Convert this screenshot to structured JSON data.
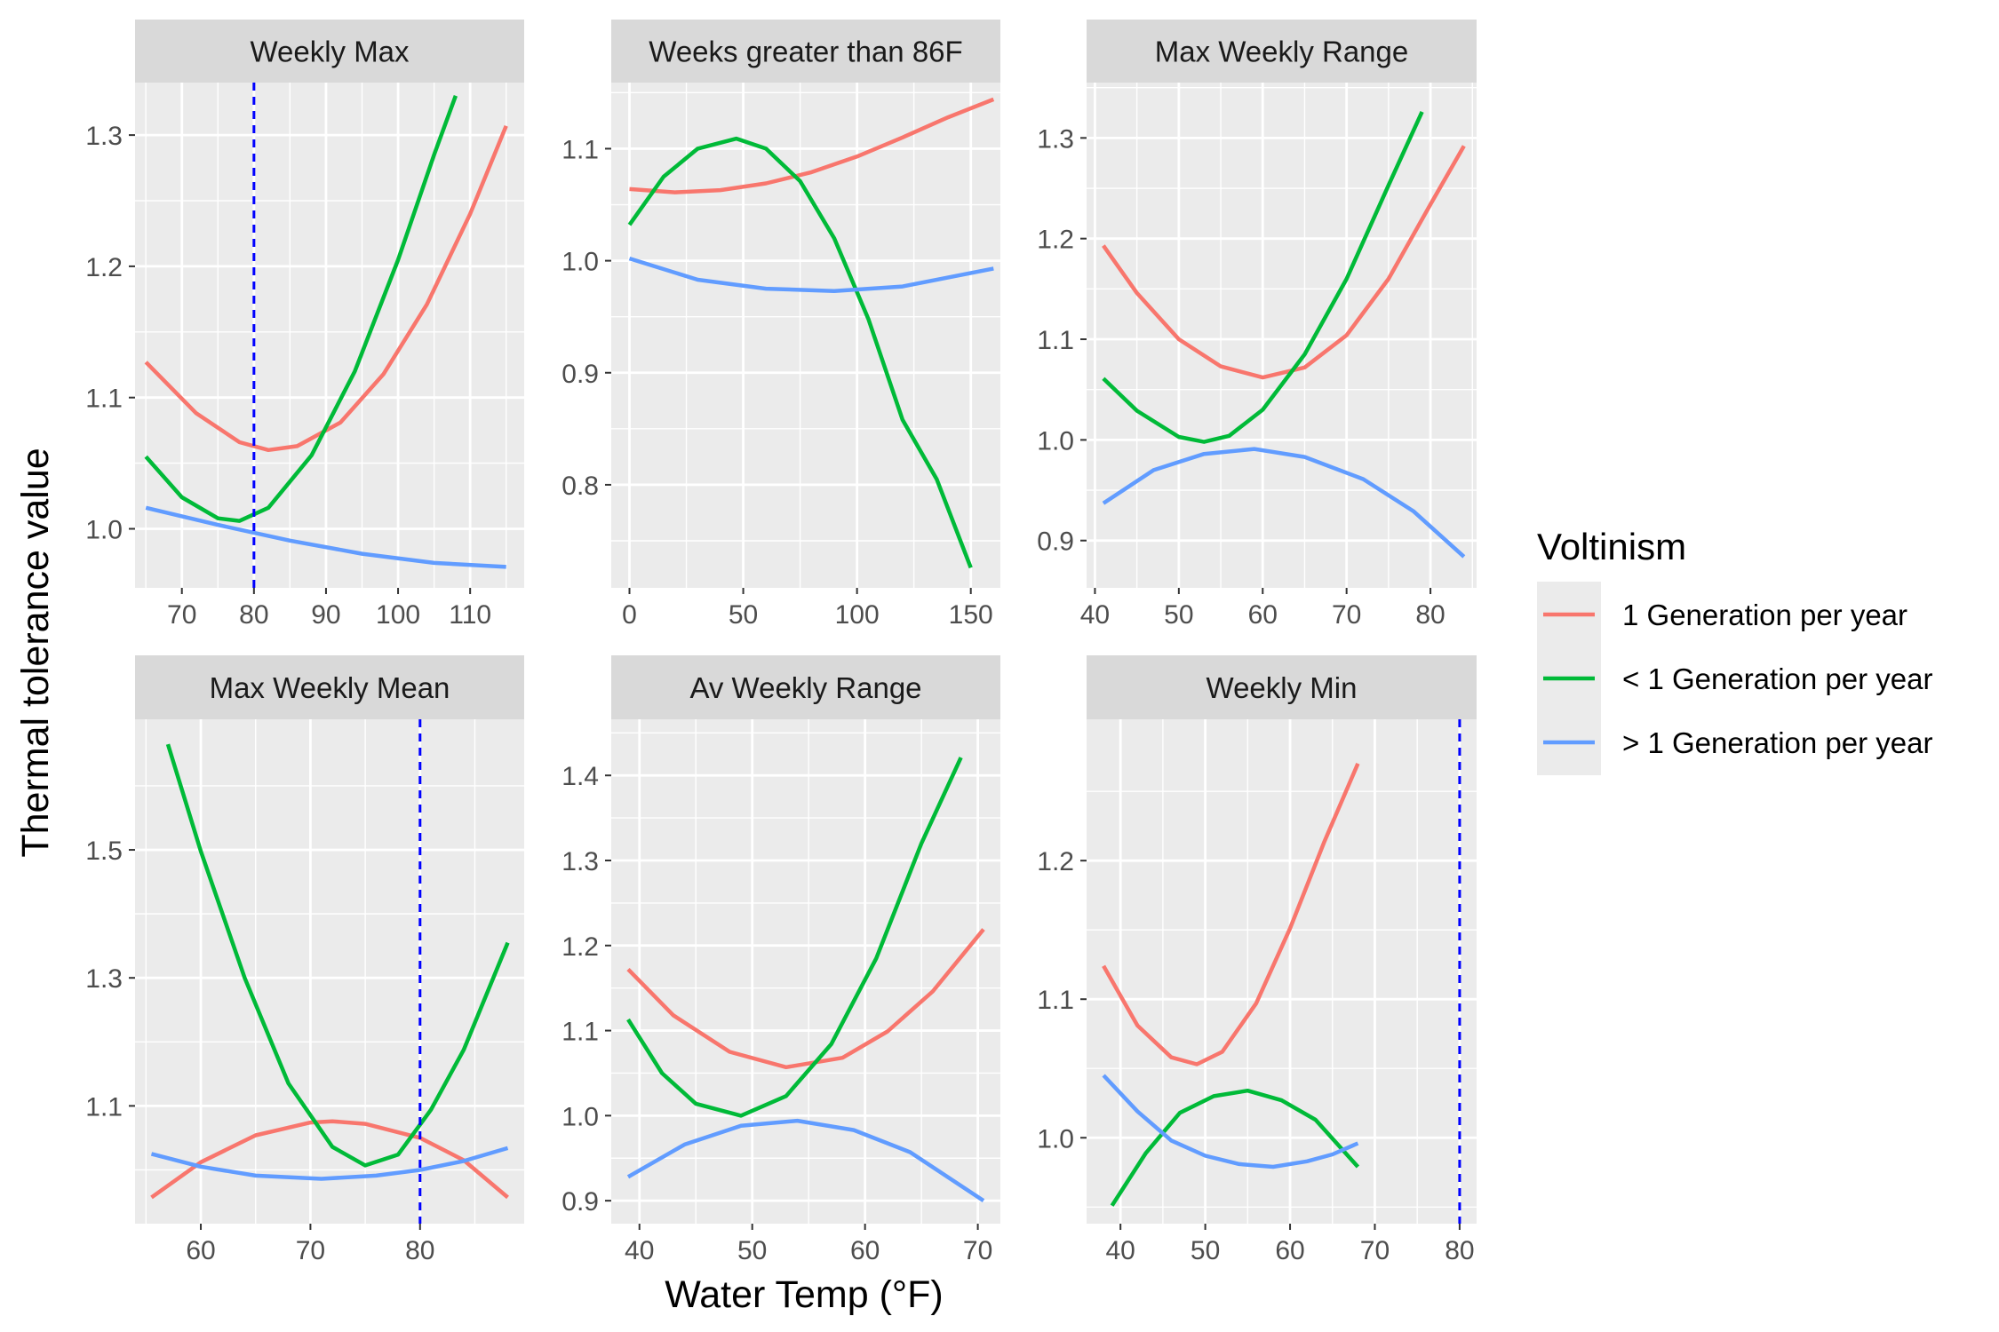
{
  "chart_data": {
    "type": "line",
    "ylabel": "Thermal tolerance value",
    "xlabel": "Water Temp (°F)",
    "legend": {
      "title": "Voltinism",
      "position": "right",
      "entries": [
        {
          "name": "1 Generation per year",
          "color": "#F8766D"
        },
        {
          "name": "< 1 Generation per year",
          "color": "#00BA38"
        },
        {
          "name": "> 1 Generation per year",
          "color": "#619CFF"
        }
      ]
    },
    "panels": [
      {
        "title": "Weekly Max",
        "xlim": [
          63.5,
          117.5
        ],
        "ylim": [
          0.955,
          1.34
        ],
        "xticks": [
          70,
          80,
          90,
          100,
          110
        ],
        "yticks": [
          1.0,
          1.1,
          1.2,
          1.3
        ],
        "yticklabels": [
          "1.0",
          "1.1",
          "1.2",
          "1.3"
        ],
        "vline": 80,
        "series": [
          {
            "name": "1 Generation per year",
            "x": [
              65,
              72,
              78,
              82,
              86,
              92,
              98,
              104,
              110,
              115
            ],
            "y": [
              1.127,
              1.088,
              1.066,
              1.06,
              1.063,
              1.081,
              1.118,
              1.171,
              1.24,
              1.307
            ]
          },
          {
            "name": "< 1 Generation per year",
            "x": [
              65,
              70,
              75,
              78,
              82,
              88,
              94,
              100,
              105,
              108
            ],
            "y": [
              1.055,
              1.024,
              1.008,
              1.006,
              1.016,
              1.056,
              1.12,
              1.205,
              1.285,
              1.33
            ]
          },
          {
            "name": "> 1 Generation per year",
            "x": [
              65,
              75,
              85,
              95,
              105,
              115
            ],
            "y": [
              1.016,
              1.003,
              0.991,
              0.981,
              0.974,
              0.971
            ]
          }
        ]
      },
      {
        "title": "Weeks greater than 86F",
        "xlim": [
          -8,
          163
        ],
        "ylim": [
          0.708,
          1.159
        ],
        "xticks": [
          0,
          50,
          100,
          150
        ],
        "yticks": [
          0.8,
          0.9,
          1.0,
          1.1
        ],
        "yticklabels": [
          "0.8",
          "0.9",
          "1.0",
          "1.1"
        ],
        "series": [
          {
            "name": "1 Generation per year",
            "x": [
              0,
              20,
              40,
              60,
              80,
              100,
              120,
              140,
              160
            ],
            "y": [
              1.064,
              1.061,
              1.063,
              1.069,
              1.079,
              1.093,
              1.11,
              1.128,
              1.144
            ]
          },
          {
            "name": "< 1 Generation per year",
            "x": [
              0,
              15,
              30,
              47,
              60,
              75,
              90,
              105,
              120,
              135,
              150
            ],
            "y": [
              1.032,
              1.075,
              1.1,
              1.109,
              1.1,
              1.071,
              1.02,
              0.948,
              0.858,
              0.805,
              0.726
            ]
          },
          {
            "name": "> 1 Generation per year",
            "x": [
              0,
              30,
              60,
              90,
              120,
              160
            ],
            "y": [
              1.002,
              0.983,
              0.975,
              0.973,
              0.977,
              0.993
            ]
          }
        ]
      },
      {
        "title": "Max Weekly Range",
        "xlim": [
          39,
          85.5
        ],
        "ylim": [
          0.853,
          1.355
        ],
        "xticks": [
          40,
          50,
          60,
          70,
          80
        ],
        "yticks": [
          0.9,
          1.0,
          1.1,
          1.2,
          1.3
        ],
        "yticklabels": [
          "0.9",
          "1.0",
          "1.1",
          "1.2",
          "1.3"
        ],
        "series": [
          {
            "name": "1 Generation per year",
            "x": [
              41,
              45,
              50,
              55,
              60,
              65,
              70,
              75,
              80,
              84
            ],
            "y": [
              1.193,
              1.146,
              1.1,
              1.073,
              1.062,
              1.072,
              1.104,
              1.16,
              1.234,
              1.292
            ]
          },
          {
            "name": "< 1 Generation per year",
            "x": [
              41,
              45,
              50,
              53,
              56,
              60,
              65,
              70,
              75,
              79
            ],
            "y": [
              1.061,
              1.029,
              1.003,
              0.998,
              1.004,
              1.03,
              1.085,
              1.16,
              1.253,
              1.326
            ]
          },
          {
            "name": "> 1 Generation per year",
            "x": [
              41,
              47,
              53,
              59,
              65,
              72,
              78,
              84
            ],
            "y": [
              0.937,
              0.97,
              0.986,
              0.991,
              0.983,
              0.961,
              0.929,
              0.884
            ]
          }
        ]
      },
      {
        "title": "Max Weekly Mean",
        "xlim": [
          54,
          89.5
        ],
        "ylim": [
          0.916,
          1.704
        ],
        "xticks": [
          60,
          70,
          80
        ],
        "yticks": [
          1.1,
          1.3,
          1.5
        ],
        "yticklabels": [
          "1.1",
          "1.3",
          "1.5"
        ],
        "vline": 80,
        "series": [
          {
            "name": "1 Generation per year",
            "x": [
              55.5,
              60,
              65,
              70,
              72,
              75,
              80,
              84,
              88
            ],
            "y": [
              0.957,
              1.012,
              1.054,
              1.074,
              1.076,
              1.072,
              1.05,
              1.015,
              0.957
            ]
          },
          {
            "name": "< 1 Generation per year",
            "x": [
              57,
              60,
              64,
              68,
              72,
              75,
              78,
              81,
              84,
              88
            ],
            "y": [
              1.665,
              1.498,
              1.3,
              1.135,
              1.036,
              1.007,
              1.024,
              1.094,
              1.188,
              1.355
            ]
          },
          {
            "name": "> 1 Generation per year",
            "x": [
              55.5,
              60,
              65,
              71,
              76,
              80,
              84,
              88
            ],
            "y": [
              1.025,
              1.005,
              0.991,
              0.986,
              0.991,
              1.0,
              1.014,
              1.034
            ]
          }
        ]
      },
      {
        "title": "Av Weekly Range",
        "xlim": [
          37.5,
          72
        ],
        "ylim": [
          0.873,
          1.466
        ],
        "xticks": [
          40,
          50,
          60,
          70
        ],
        "yticks": [
          0.9,
          1.0,
          1.1,
          1.2,
          1.3,
          1.4
        ],
        "yticklabels": [
          "0.9",
          "1.0",
          "1.1",
          "1.2",
          "1.3",
          "1.4"
        ],
        "series": [
          {
            "name": "1 Generation per year",
            "x": [
              39,
              43,
              48,
              53,
              58,
              62,
              66,
              70.5
            ],
            "y": [
              1.172,
              1.118,
              1.075,
              1.057,
              1.068,
              1.099,
              1.146,
              1.219
            ]
          },
          {
            "name": "< 1 Generation per year",
            "x": [
              39,
              42,
              45,
              49,
              53,
              57,
              61,
              65,
              68.5
            ],
            "y": [
              1.113,
              1.05,
              1.014,
              1.0,
              1.023,
              1.084,
              1.185,
              1.32,
              1.421
            ]
          },
          {
            "name": "> 1 Generation per year",
            "x": [
              39,
              44,
              49,
              54,
              59,
              64,
              70.5
            ],
            "y": [
              0.928,
              0.966,
              0.988,
              0.994,
              0.983,
              0.957,
              0.9
            ]
          }
        ]
      },
      {
        "title": "Weekly Min",
        "xlim": [
          36,
          82
        ],
        "ylim": [
          0.938,
          1.302
        ],
        "xticks": [
          40,
          50,
          60,
          70,
          80
        ],
        "yticks": [
          1.0,
          1.1,
          1.2
        ],
        "yticklabels": [
          "1.0",
          "1.1",
          "1.2"
        ],
        "vline": 80,
        "series": [
          {
            "name": "1 Generation per year",
            "x": [
              38,
              42,
              46,
              49,
              52,
              56,
              60,
              64,
              68
            ],
            "y": [
              1.124,
              1.081,
              1.058,
              1.053,
              1.062,
              1.097,
              1.151,
              1.213,
              1.27
            ]
          },
          {
            "name": "< 1 Generation per year",
            "x": [
              39,
              43,
              47,
              51,
              55,
              59,
              63,
              68
            ],
            "y": [
              0.951,
              0.989,
              1.018,
              1.03,
              1.034,
              1.027,
              1.013,
              0.979
            ]
          },
          {
            "name": "> 1 Generation per year",
            "x": [
              38,
              42,
              46,
              50,
              54,
              58,
              62,
              65,
              68
            ],
            "y": [
              1.045,
              1.019,
              0.998,
              0.987,
              0.981,
              0.979,
              0.983,
              0.988,
              0.996
            ]
          }
        ]
      }
    ]
  }
}
